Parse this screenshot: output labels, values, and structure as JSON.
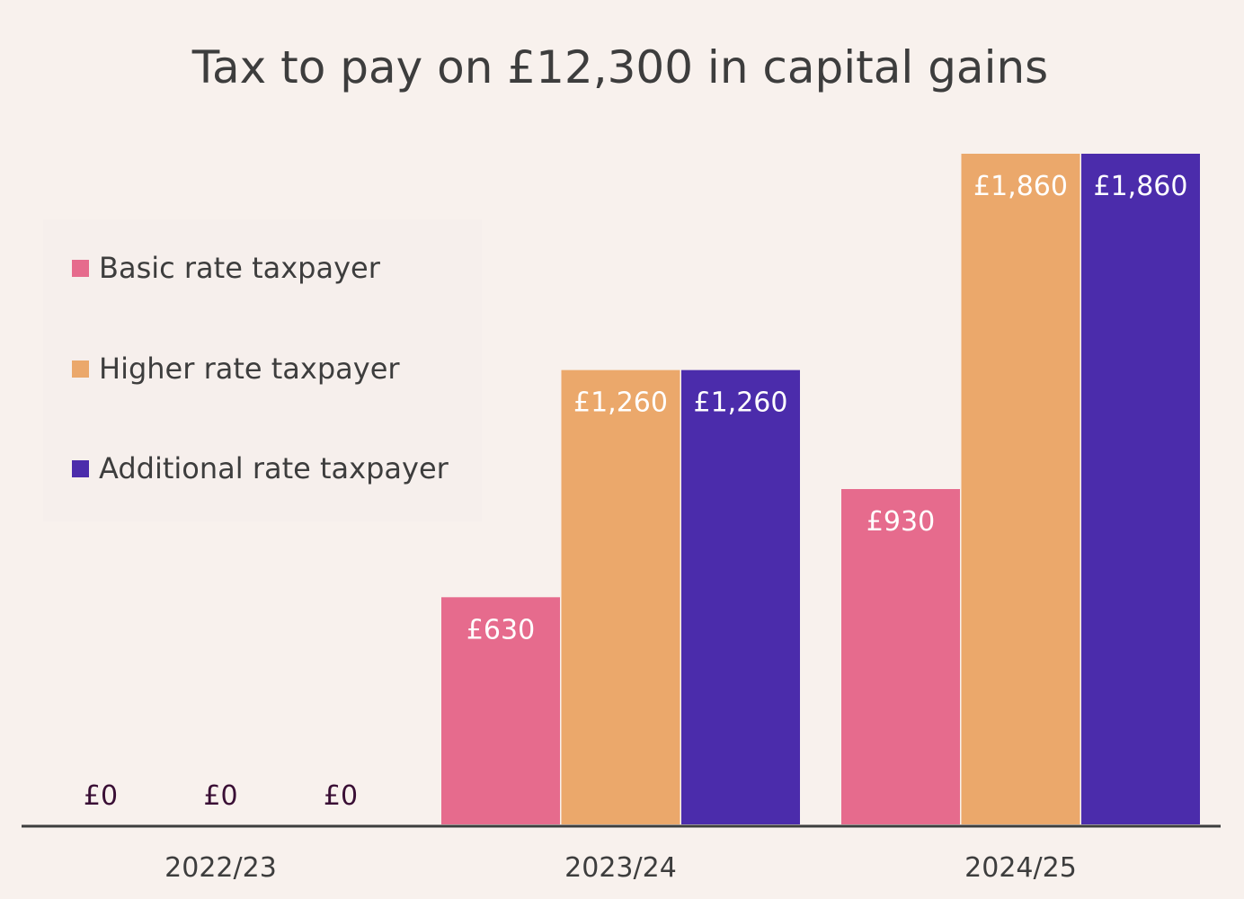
{
  "chart_data": {
    "type": "bar",
    "title": "Tax to pay on £12,300 in capital gains",
    "xlabel": "",
    "ylabel": "",
    "ylim": [
      0,
      2000
    ],
    "grid": false,
    "legend_position": "top-left",
    "categories": [
      "2022/23",
      "2023/24",
      "2024/25"
    ],
    "series": [
      {
        "name": "Basic rate taxpayer",
        "color": "#e66b8d",
        "values": [
          0,
          630,
          930
        ],
        "labels": [
          "£0",
          "£630",
          "£930"
        ]
      },
      {
        "name": "Higher rate taxpayer",
        "color": "#eba86b",
        "values": [
          0,
          1260,
          1860
        ],
        "labels": [
          "£0",
          "£1,260",
          "£1,860"
        ]
      },
      {
        "name": "Additional rate taxpayer",
        "color": "#4b2cab",
        "values": [
          0,
          1260,
          1860
        ],
        "labels": [
          "£0",
          "£1,260",
          "£1,860"
        ]
      }
    ]
  },
  "colors": {
    "background": "#f8f1ed",
    "legend_background": "#f6efec",
    "axis": "#3d3d3d",
    "zero_label": "#3a0f35",
    "bar_label": "#ffffff"
  }
}
